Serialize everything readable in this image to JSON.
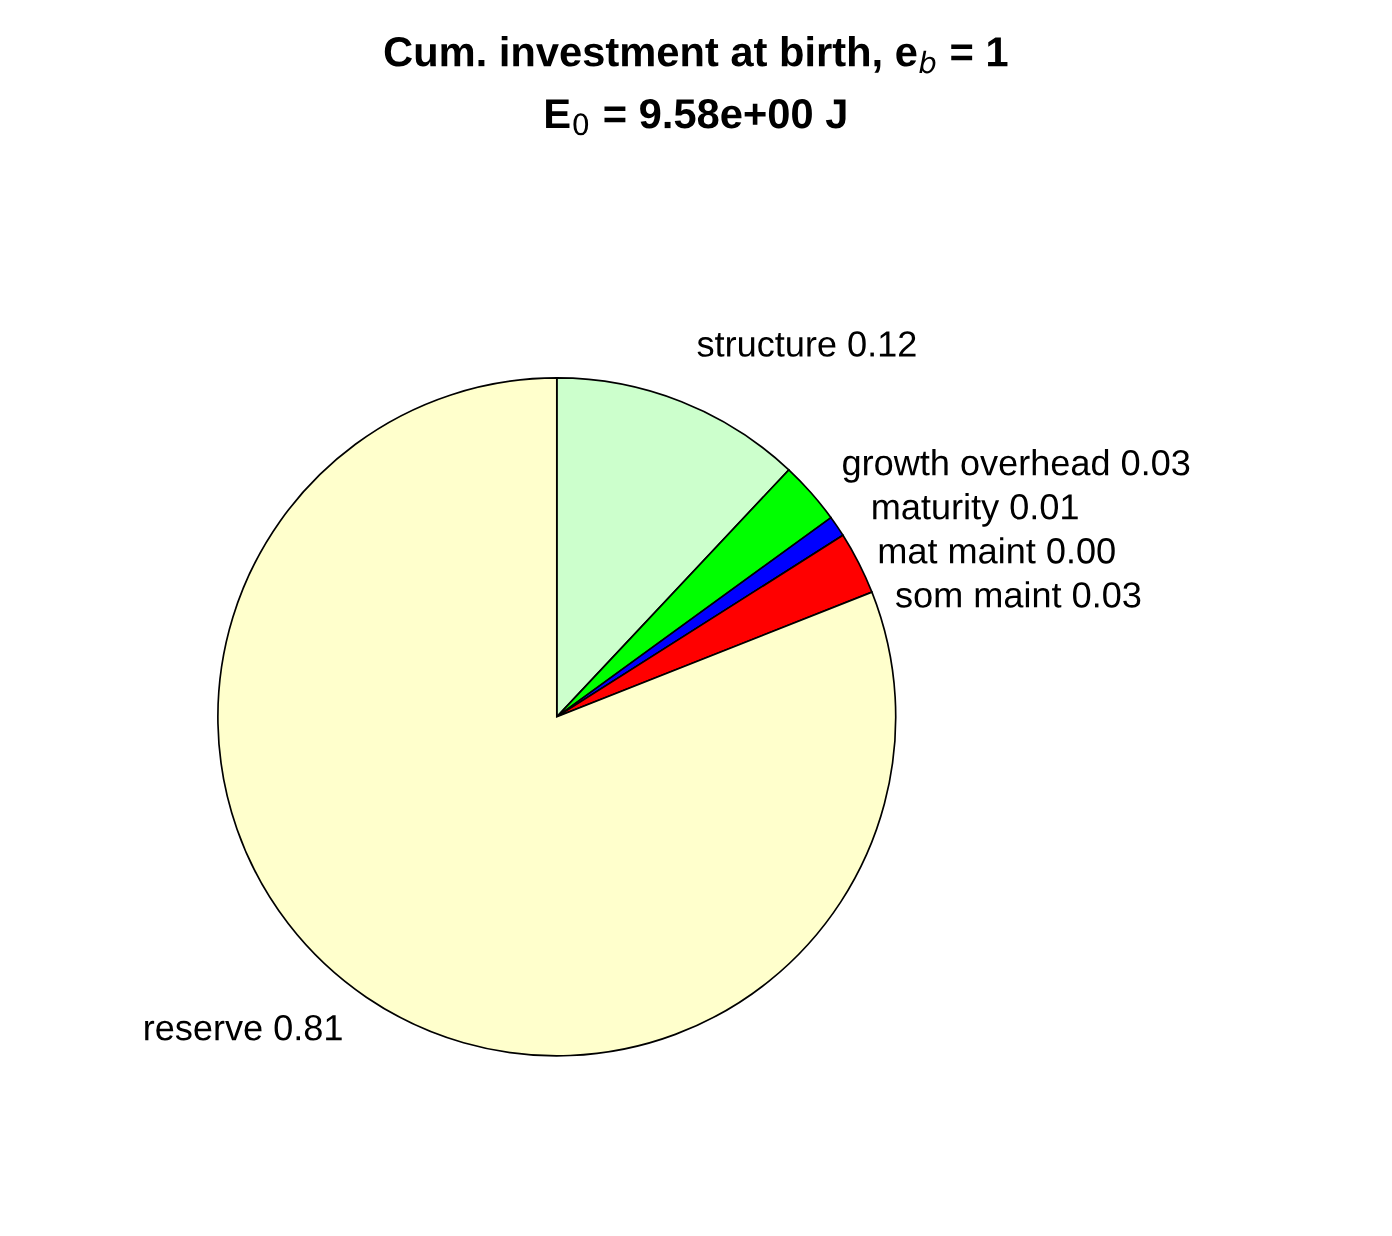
{
  "chart_data": {
    "type": "pie",
    "title": "Cum. investment at birth, e$_{b}$ = 1",
    "subtitle": "E$_{0}$ = 9.58e+00 J",
    "categories": [
      "structure 0.12",
      "growth overhead 0.03",
      "maturity 0.01",
      "mat maint 0.00",
      "som maint 0.03",
      "reserve 0.81"
    ],
    "values": [
      0.12,
      0.03,
      0.01,
      0.0,
      0.03,
      0.81
    ],
    "colors": [
      "#ccffcc",
      "#00ff00",
      "#0000ff",
      "#000080",
      "#ff0000",
      "#ffffcc"
    ],
    "legend": false
  }
}
